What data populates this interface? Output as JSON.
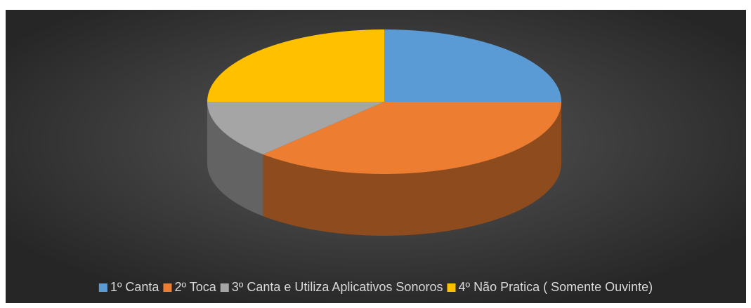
{
  "chart_data": {
    "type": "pie3d",
    "categories": [
      "1º Canta",
      "2º Toca",
      "3º Canta e Utiliza Aplicativos Sonoros",
      "4º Não Pratica ( Somente Ouvinte)"
    ],
    "values": [
      25,
      37,
      13,
      25
    ],
    "colors": [
      "#5b9bd5",
      "#ed7d31",
      "#a5a5a5",
      "#ffc000"
    ],
    "legend": "bottom"
  }
}
